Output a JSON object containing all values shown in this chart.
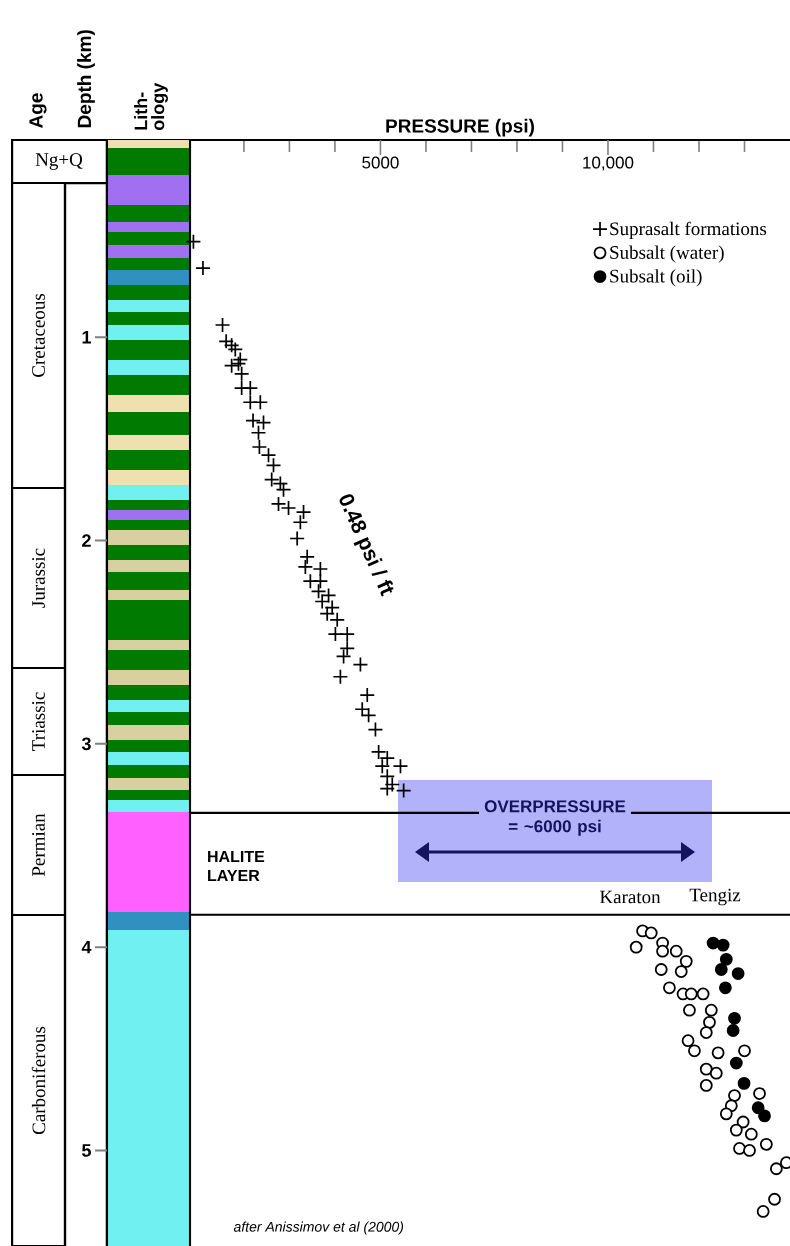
{
  "chart_data": {
    "type": "scatter",
    "xlabel": "PRESSURE (psi)",
    "ylabel": "Depth (km)",
    "xlim": [
      815,
      14000
    ],
    "ylim": [
      5.47,
      0.03
    ],
    "xticks": [
      {
        "value": 2000,
        "label": null
      },
      {
        "value": 3000,
        "label": null
      },
      {
        "value": 4000,
        "label": null
      },
      5000,
      {
        "value": 6000,
        "label": null
      },
      {
        "value": 7000,
        "label": null
      },
      {
        "value": 8000,
        "label": null
      },
      {
        "value": 9000,
        "label": null
      },
      {
        "value": 10000,
        "label": "10,000"
      },
      {
        "value": 11000,
        "label": null
      },
      {
        "value": 12000,
        "label": null
      },
      {
        "value": 13000,
        "label": null
      }
    ],
    "yticks": [
      1,
      2,
      3,
      4,
      5
    ],
    "legend": "top right",
    "series": [
      {
        "name": "Suprasalt formations",
        "color": "#000000",
        "marker": "cross",
        "x": [
          890,
          1100,
          1530,
          1610,
          1730,
          1810,
          1920,
          1730,
          1880,
          1950,
          1950,
          2140,
          2140,
          2360,
          2200,
          2430,
          2320,
          2340,
          2540,
          2650,
          2610,
          2800,
          2870,
          2760,
          2980,
          3310,
          3240,
          3170,
          3390,
          3350,
          3680,
          3460,
          3680,
          3640,
          3860,
          3720,
          3940,
          3830,
          4050,
          4010,
          4270,
          4270,
          4190,
          4560,
          4120,
          4710,
          4600,
          4740,
          4890,
          4960,
          5150,
          5440,
          5040,
          5150,
          5260,
          5510,
          5150
        ],
        "values": [
          0.53,
          0.66,
          0.94,
          1.02,
          1.04,
          1.06,
          1.11,
          1.14,
          1.13,
          1.18,
          1.25,
          1.25,
          1.32,
          1.32,
          1.41,
          1.42,
          1.47,
          1.54,
          1.58,
          1.63,
          1.7,
          1.72,
          1.75,
          1.82,
          1.84,
          1.86,
          1.91,
          1.99,
          2.08,
          2.13,
          2.14,
          2.2,
          2.2,
          2.25,
          2.27,
          2.3,
          2.33,
          2.36,
          2.39,
          2.46,
          2.46,
          2.53,
          2.57,
          2.61,
          2.67,
          2.76,
          2.83,
          2.86,
          2.93,
          3.04,
          3.07,
          3.11,
          3.11,
          3.16,
          3.2,
          3.23,
          3.22
        ]
      },
      {
        "name": "Subsalt (water)",
        "color": "#ffffff",
        "marker": "circle",
        "x": [
          10760,
          10950,
          10620,
          11200,
          11200,
          11500,
          11720,
          11170,
          11610,
          11350,
          11650,
          11830,
          12090,
          11790,
          12270,
          12230,
          12160,
          11760,
          11900,
          12420,
          13000,
          12160,
          12380,
          12160,
          12780,
          13330,
          12710,
          12600,
          12970,
          12820,
          13150,
          12890,
          13110,
          13480,
          13700,
          13920,
          13660,
          13410
        ],
        "values": [
          3.92,
          3.93,
          4.0,
          3.98,
          4.02,
          4.02,
          4.07,
          4.11,
          4.12,
          4.2,
          4.23,
          4.23,
          4.23,
          4.31,
          4.31,
          4.37,
          4.42,
          4.46,
          4.51,
          4.52,
          4.51,
          4.6,
          4.62,
          4.68,
          4.73,
          4.72,
          4.78,
          4.82,
          4.86,
          4.9,
          4.92,
          4.99,
          5.0,
          4.97,
          5.09,
          5.06,
          5.24,
          5.3
        ]
      },
      {
        "name": "Subsalt (oil)",
        "color": "#000000",
        "marker": "circle",
        "x": [
          12310,
          12530,
          12600,
          12490,
          12860,
          12580,
          12780,
          12750,
          12820,
          12990,
          13300,
          13440
        ],
        "values": [
          3.98,
          3.99,
          4.06,
          4.11,
          4.13,
          4.2,
          4.35,
          4.41,
          4.57,
          4.67,
          4.79,
          4.83
        ]
      }
    ],
    "ref_lines": [
      {
        "axis": "y",
        "value": 3.34,
        "label": null
      },
      {
        "axis": "y",
        "value": 3.84,
        "label": null
      }
    ],
    "annotations": [
      "Age",
      "Lith- ology",
      "Ng+Q",
      "Cretaceous",
      "Jurassic",
      "Triassic",
      "Permian",
      "Carboniferous",
      "0.48 psi / ft",
      "OVERPRESSURE = ~6000 psi",
      "HALITE LAYER",
      "Karaton",
      "Tengiz",
      "after Anissimov et al (2000)"
    ]
  }
}
